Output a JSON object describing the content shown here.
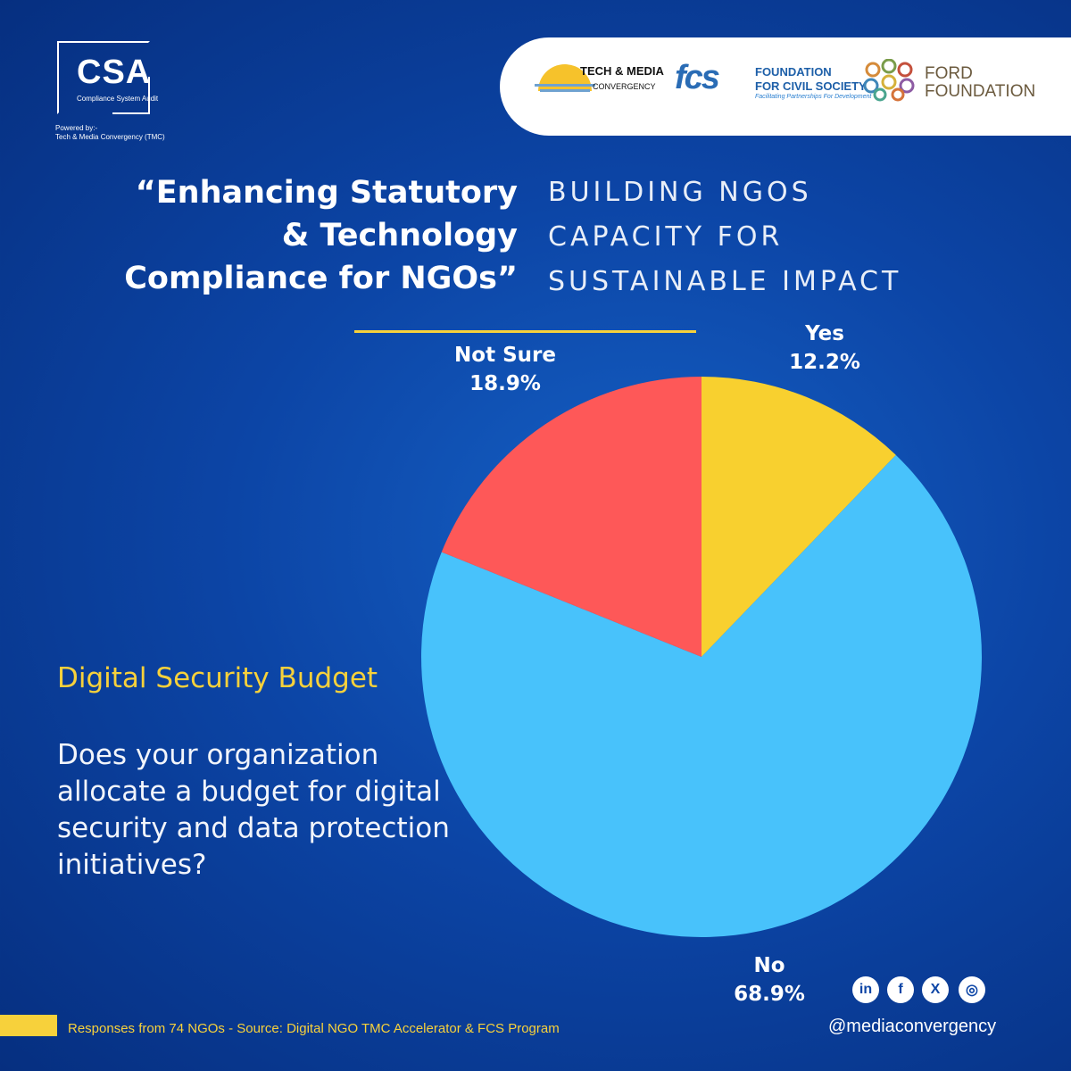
{
  "logo": {
    "letters": "CSA",
    "subtitle": "Compliance System Audit",
    "powered_line1": "Powered by:-",
    "powered_line2": "Tech & Media Convergency (TMC)"
  },
  "partners": {
    "tmc_name": "TECH & MEDIA",
    "tmc_sub": "CONVERGENCY",
    "fcs_mark": "fcs",
    "fcs_name1": "FOUNDATION",
    "fcs_name2": "FOR CIVIL SOCIETY",
    "fcs_tag": "Facilitating Partnerships For Development",
    "ford_name1": "FORD",
    "ford_name2": "FOUNDATION"
  },
  "headline": {
    "line1": "“Enhancing Statutory",
    "line2": "& Technology",
    "line3": "Compliance for NGOs”"
  },
  "tagline": {
    "line1": "BUILDING NGOS",
    "line2": "CAPACITY FOR",
    "line3": "SUSTAINABLE IMPACT"
  },
  "question": {
    "title": "Digital Security Budget",
    "text": " Does your organization allocate a budget for digital security and data protection initiatives?"
  },
  "chart_data": {
    "type": "pie",
    "categories": [
      "Yes",
      "No",
      "Not Sure"
    ],
    "values": [
      12.2,
      68.9,
      18.9
    ],
    "labels": [
      "12.2%",
      "68.9%",
      "18.9%"
    ],
    "colors": [
      "#f8d02f",
      "#48c2fb",
      "#fe5858"
    ],
    "start_angle_deg": 0,
    "direction": "clockwise"
  },
  "footer": {
    "source": "Responses from 74 NGOs - Source: Digital NGO TMC Accelerator & FCS Program",
    "handle": "@mediaconvergency",
    "social_icons": [
      "linkedin-icon",
      "facebook-icon",
      "x-icon",
      "instagram-icon"
    ],
    "social_glyphs": [
      "in",
      "f",
      "X",
      "◎"
    ]
  },
  "colors": {
    "accent": "#f7d13b",
    "background": "#0c45a6"
  }
}
